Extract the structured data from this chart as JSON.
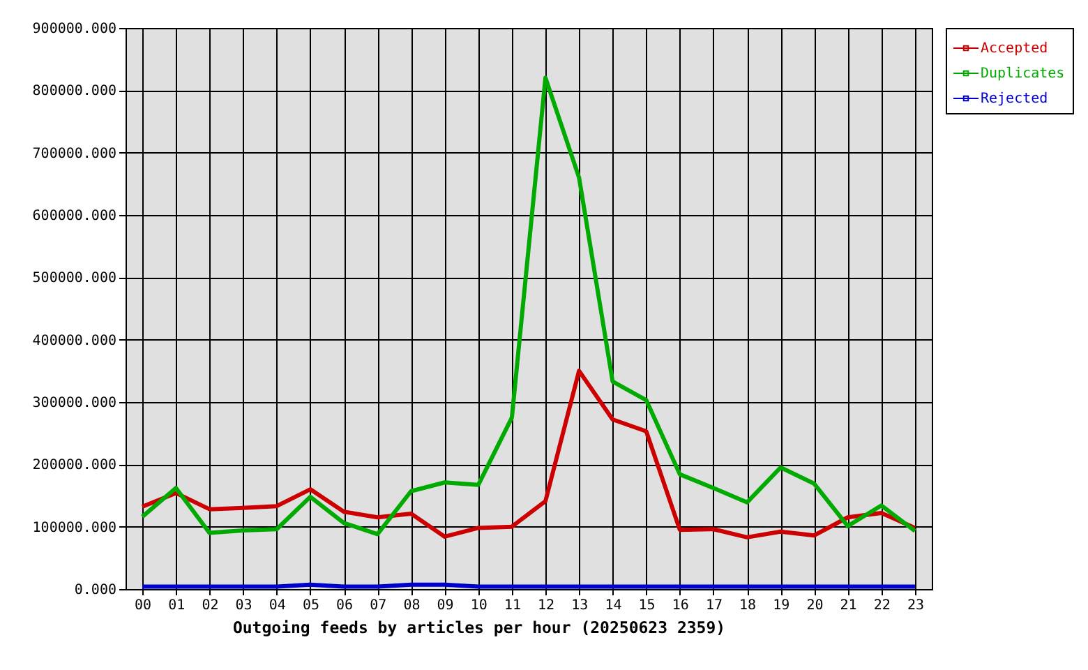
{
  "chart_data": {
    "type": "line",
    "xlabel": "Outgoing feeds by articles per hour (20250623 2359)",
    "categories": [
      "00",
      "01",
      "02",
      "03",
      "04",
      "05",
      "06",
      "07",
      "08",
      "09",
      "10",
      "11",
      "12",
      "13",
      "14",
      "15",
      "16",
      "17",
      "18",
      "19",
      "20",
      "21",
      "22",
      "23"
    ],
    "series": [
      {
        "name": "Accepted",
        "color": "#cc0000",
        "values": [
          132000,
          154000,
          128000,
          130000,
          133000,
          160000,
          124000,
          115000,
          121000,
          84000,
          98000,
          100000,
          141000,
          350000,
          272000,
          253000,
          95000,
          96000,
          83000,
          92000,
          86000,
          115000,
          122000,
          98000
        ]
      },
      {
        "name": "Duplicates",
        "color": "#00aa00",
        "values": [
          116000,
          162000,
          90000,
          94000,
          96000,
          148000,
          106000,
          88000,
          157000,
          171000,
          167000,
          275000,
          820000,
          660000,
          333000,
          303000,
          184000,
          162000,
          139000,
          195000,
          169000,
          101000,
          134000,
          93000
        ]
      },
      {
        "name": "Rejected",
        "color": "#0000cc",
        "values": [
          4000,
          4000,
          4000,
          4000,
          4000,
          7000,
          4000,
          4000,
          7000,
          7000,
          4000,
          4000,
          4000,
          4000,
          4000,
          4000,
          4000,
          4000,
          4000,
          4000,
          4000,
          4000,
          4000,
          4000
        ]
      }
    ],
    "ylim": [
      0,
      900000
    ],
    "yticks": [
      {
        "value": 0,
        "label": "0.000"
      },
      {
        "value": 100000,
        "label": "100000.000"
      },
      {
        "value": 200000,
        "label": "200000.000"
      },
      {
        "value": 300000,
        "label": "300000.000"
      },
      {
        "value": 400000,
        "label": "400000.000"
      },
      {
        "value": 500000,
        "label": "500000.000"
      },
      {
        "value": 600000,
        "label": "600000.000"
      },
      {
        "value": 700000,
        "label": "700000.000"
      },
      {
        "value": 800000,
        "label": "800000.000"
      },
      {
        "value": 900000,
        "label": "900000.000"
      }
    ],
    "grid": true,
    "legend": "right",
    "line_style": "solid"
  }
}
